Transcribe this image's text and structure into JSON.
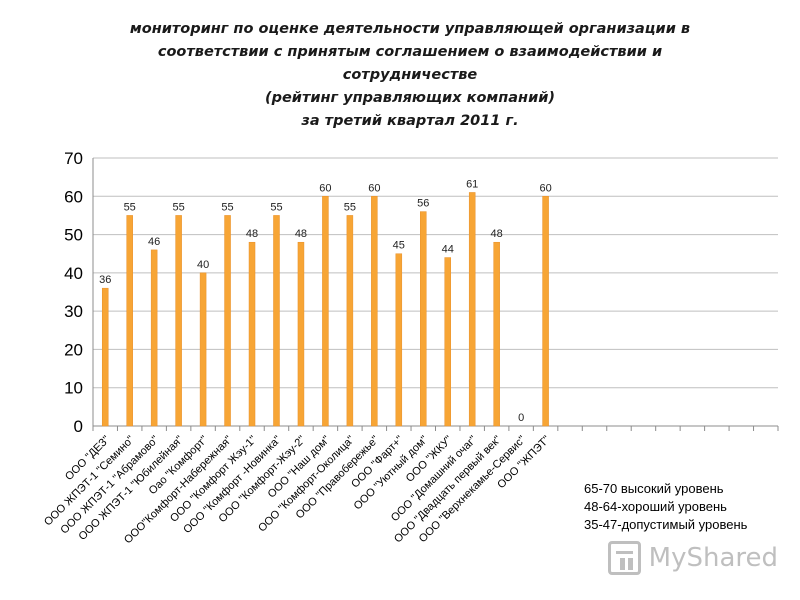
{
  "title_lines": [
    "мониторинг по оценке деятельности управляющей организации в",
    "соответствии с принятым соглашением о взаимодействии и",
    "сотрудничестве",
    "(рейтинг управляющих компаний)",
    "за третий квартал 2011 г."
  ],
  "legend_lines": [
    "65-70  высокий уровень",
    "48-64-хороший уровень",
    "35-47-допустимый уровень"
  ],
  "watermark": "MyShared",
  "colors": {
    "bar": "#F7A535",
    "bar_edge": "#E8902A",
    "grid": "#BFBFBF",
    "axis": "#8C8C8C"
  },
  "chart_data": {
    "type": "bar",
    "categories": [
      "ООО \"ДЕЗ\"",
      "ООО ЖПЭТ-1 \"Семино\"",
      "ООО ЖПЭТ-1 \"Абрамово\"",
      "ООО ЖПЭТ-1 \"Юбилейная\"",
      "Оао \"Комфорт\"",
      "ООО\"Комфорт-Набережная\"",
      "ООО \"Комфорт Жэу-1\"",
      "ООО \"Комфорт -Новинка\"",
      "ООО \"Комфорт-Жэу-2\"",
      "ООО \"Наш дом\"",
      "ООО \"Комфорт-Околица\"",
      "ООО \"Правобережье\"",
      "ООО \"Фарт+\"",
      "ООО \"Уютный дом\"",
      "ООО \"ЖКУ\"",
      "ООО \"Домашний очаг\"",
      "ООО \"Двадцать первый век\"",
      "ООО \"Верхнекамье-Сервис\"",
      "ООО \"ЖПЭТ\""
    ],
    "values": [
      36,
      55,
      46,
      55,
      40,
      55,
      48,
      55,
      48,
      60,
      55,
      60,
      45,
      56,
      44,
      61,
      48,
      0,
      60
    ],
    "ylim": [
      0,
      70
    ],
    "yticks": [
      0,
      10,
      20,
      30,
      40,
      50,
      60,
      70
    ],
    "slots": 28,
    "grid": true
  }
}
